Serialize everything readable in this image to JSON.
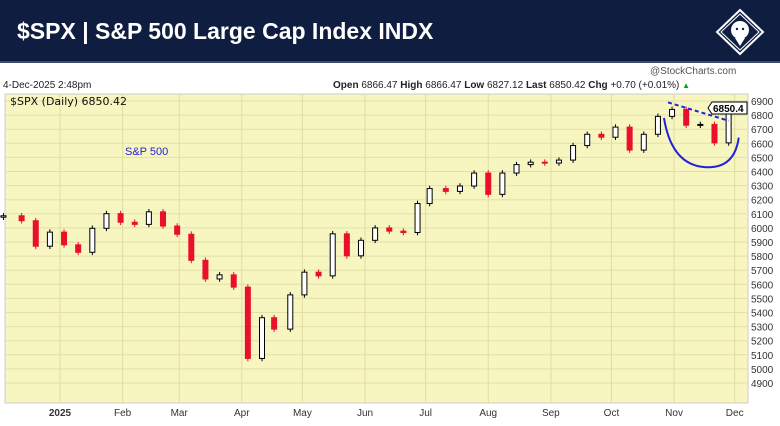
{
  "header": {
    "title": "$SPX | S&P 500 Large Cap Index INDX"
  },
  "info": {
    "date": "4-Dec-2025 2:48pm",
    "credit": "@StockCharts.com",
    "open_label": "Open",
    "open": "6866.47",
    "high_label": "High",
    "high": "6866.47",
    "low_label": "Low",
    "low": "6827.12",
    "last_label": "Last",
    "last": "6850.42",
    "chg_label": "Chg",
    "chg": "+0.70 (+0.01%)",
    "legend": "$SPX (Daily) 6850.42",
    "price_tag": "6850.4"
  },
  "chart_data": {
    "type": "candlestick",
    "title": "$SPX (Daily) 6850.42",
    "annotation": "S&P 500",
    "annotation_color": "#2222dd",
    "up_color": "#000000",
    "down_color": "#e8102a",
    "background": "#f7f5c0",
    "ylim": [
      4800,
      6950
    ],
    "y_ticks": [
      4900,
      5000,
      5100,
      5200,
      5300,
      5400,
      5500,
      5600,
      5700,
      5800,
      5900,
      6000,
      6100,
      6200,
      6300,
      6400,
      6500,
      6600,
      6700,
      6800,
      6900
    ],
    "x_ticks": [
      {
        "label": "2025",
        "date": "2025-01-01"
      },
      {
        "label": "Feb",
        "date": "2025-02-01"
      },
      {
        "label": "Mar",
        "date": "2025-03-01"
      },
      {
        "label": "Apr",
        "date": "2025-04-01"
      },
      {
        "label": "May",
        "date": "2025-05-01"
      },
      {
        "label": "Jun",
        "date": "2025-06-01"
      },
      {
        "label": "Jul",
        "date": "2025-07-01"
      },
      {
        "label": "Aug",
        "date": "2025-08-01"
      },
      {
        "label": "Sep",
        "date": "2025-09-01"
      },
      {
        "label": "Oct",
        "date": "2025-10-01"
      },
      {
        "label": "Nov",
        "date": "2025-11-01"
      },
      {
        "label": "Dec",
        "date": "2025-12-01"
      }
    ],
    "grid": true,
    "series": {
      "dates": [
        "2024-12-04",
        "2024-12-13",
        "2024-12-20",
        "2024-12-27",
        "2025-01-03",
        "2025-01-10",
        "2025-01-17",
        "2025-01-24",
        "2025-01-31",
        "2025-02-07",
        "2025-02-14",
        "2025-02-21",
        "2025-02-28",
        "2025-03-07",
        "2025-03-14",
        "2025-03-21",
        "2025-03-28",
        "2025-04-04",
        "2025-04-11",
        "2025-04-17",
        "2025-04-25",
        "2025-05-02",
        "2025-05-09",
        "2025-05-16",
        "2025-05-23",
        "2025-05-30",
        "2025-06-06",
        "2025-06-13",
        "2025-06-20",
        "2025-06-27",
        "2025-07-03",
        "2025-07-11",
        "2025-07-18",
        "2025-07-25",
        "2025-08-01",
        "2025-08-08",
        "2025-08-15",
        "2025-08-22",
        "2025-08-29",
        "2025-09-05",
        "2025-09-12",
        "2025-09-19",
        "2025-09-26",
        "2025-10-03",
        "2025-10-10",
        "2025-10-17",
        "2025-10-24",
        "2025-10-31",
        "2025-11-07",
        "2025-11-14",
        "2025-11-21",
        "2025-11-28",
        "2025-12-04"
      ],
      "close": [
        6086,
        6051,
        5870,
        5970,
        5880,
        5827,
        5997,
        6101,
        6040,
        6025,
        6114,
        6013,
        5955,
        5770,
        5638,
        5667,
        5580,
        5074,
        5363,
        5282,
        5525,
        5686,
        5660,
        5958,
        5802,
        5912,
        6000,
        5977,
        5967,
        6173,
        6279,
        6259,
        6297,
        6389,
        6238,
        6389,
        6449,
        6466,
        6460,
        6481,
        6584,
        6664,
        6643,
        6715,
        6552,
        6664,
        6791,
        6840,
        6728,
        6734,
        6603,
        6849,
        6850
      ]
    },
    "trendline": {
      "style": "dashed",
      "from": {
        "date": "2025-10-29",
        "value": 6890
      },
      "to": {
        "date": "2025-11-28",
        "value": 6760
      }
    },
    "arc": {
      "from": {
        "date": "2025-10-27",
        "value": 6780
      },
      "bottom": {
        "date": "2025-11-18",
        "value": 6430
      },
      "to": {
        "date": "2025-12-03",
        "value": 6640
      }
    }
  }
}
